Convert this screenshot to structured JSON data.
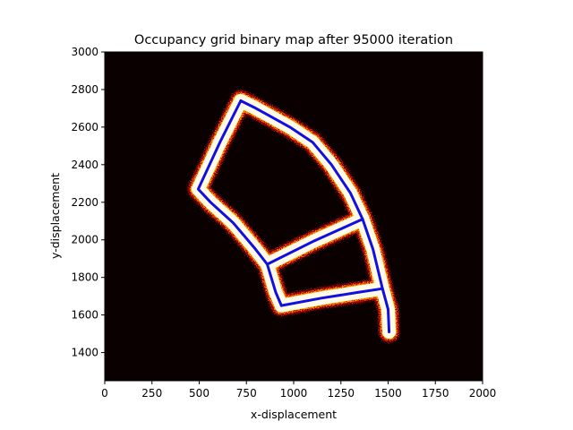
{
  "chart_data": {
    "type": "heatmap",
    "title": "Occupancy grid binary map after 95000 iteration",
    "xlabel": "x-displacement",
    "ylabel": "y-displacement",
    "xlim": [
      0,
      2000
    ],
    "ylim": [
      1250,
      3000
    ],
    "xticks": [
      "0",
      "250",
      "500",
      "750",
      "1000",
      "1250",
      "1500",
      "1750",
      "2000"
    ],
    "yticks": [
      "1400",
      "1600",
      "1800",
      "2000",
      "2200",
      "2400",
      "2600",
      "2800",
      "3000"
    ],
    "xtick_values": [
      0,
      250,
      500,
      750,
      1000,
      1250,
      1500,
      1750,
      2000
    ],
    "ytick_values": [
      1400,
      1600,
      1800,
      2000,
      2200,
      2400,
      2600,
      2800,
      3000
    ],
    "grid": false,
    "colormap": "hot",
    "background_color": "#0b0000",
    "occupied_color": "#fffbe6",
    "path_color": "#1010e0",
    "occupied_region": {
      "outer_loop": [
        [
          720,
          2740
        ],
        [
          800,
          2700
        ],
        [
          980,
          2600
        ],
        [
          1100,
          2520
        ],
        [
          1200,
          2400
        ],
        [
          1300,
          2250
        ],
        [
          1365,
          2110
        ],
        [
          1420,
          1950
        ],
        [
          1470,
          1740
        ],
        [
          1500,
          1630
        ],
        [
          1505,
          1510
        ]
      ],
      "left_loop": [
        [
          720,
          2740
        ],
        [
          610,
          2520
        ],
        [
          495,
          2270
        ],
        [
          560,
          2200
        ],
        [
          680,
          2090
        ],
        [
          790,
          1960
        ],
        [
          860,
          1870
        ],
        [
          905,
          1720
        ],
        [
          935,
          1650
        ]
      ],
      "bottom_corridor": [
        [
          935,
          1650
        ],
        [
          1150,
          1690
        ],
        [
          1340,
          1720
        ],
        [
          1470,
          1740
        ]
      ],
      "middle_corridor": [
        [
          860,
          1870
        ],
        [
          1100,
          1990
        ],
        [
          1365,
          2110
        ]
      ]
    },
    "robot_path": [
      [
        [
          720,
          2740
        ],
        [
          800,
          2700
        ],
        [
          980,
          2600
        ],
        [
          1100,
          2520
        ],
        [
          1200,
          2400
        ],
        [
          1300,
          2250
        ],
        [
          1365,
          2110
        ],
        [
          1420,
          1950
        ],
        [
          1470,
          1740
        ],
        [
          1500,
          1630
        ],
        [
          1505,
          1510
        ]
      ],
      [
        [
          720,
          2740
        ],
        [
          610,
          2520
        ],
        [
          495,
          2270
        ],
        [
          560,
          2200
        ],
        [
          680,
          2090
        ],
        [
          790,
          1960
        ],
        [
          860,
          1870
        ],
        [
          905,
          1720
        ],
        [
          935,
          1650
        ]
      ],
      [
        [
          935,
          1650
        ],
        [
          1150,
          1690
        ],
        [
          1340,
          1720
        ],
        [
          1470,
          1740
        ]
      ],
      [
        [
          860,
          1870
        ],
        [
          1100,
          1990
        ],
        [
          1365,
          2110
        ]
      ]
    ]
  }
}
